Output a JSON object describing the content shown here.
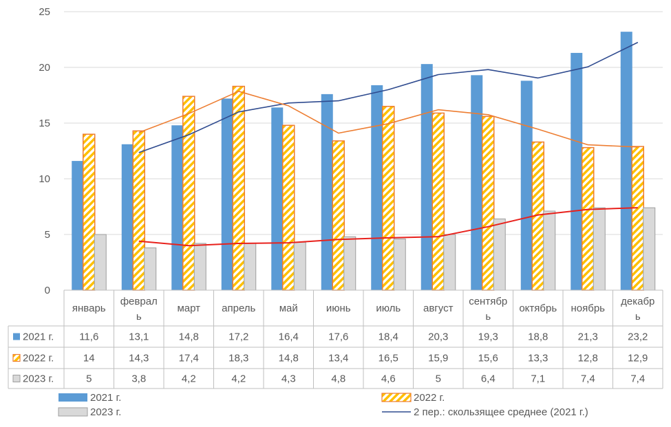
{
  "chart_data": {
    "type": "bar",
    "title": "",
    "xlabel": "",
    "ylabel": "",
    "ylim": [
      0,
      25
    ],
    "yticks": [
      0,
      5,
      10,
      15,
      20,
      25
    ],
    "grid": true,
    "categories": [
      "январь",
      "февраль",
      "март",
      "апрель",
      "май",
      "июнь",
      "июль",
      "август",
      "сентябрь",
      "октябрь",
      "ноябрь",
      "декабрь"
    ],
    "category_lines": [
      [
        "январь"
      ],
      [
        "феврал",
        "ь"
      ],
      [
        "март"
      ],
      [
        "апрель"
      ],
      [
        "май"
      ],
      [
        "июнь"
      ],
      [
        "июль"
      ],
      [
        "август"
      ],
      [
        "сентябр",
        "ь"
      ],
      [
        "октябрь"
      ],
      [
        "ноябрь"
      ],
      [
        "декабр",
        "ь"
      ]
    ],
    "series": [
      {
        "name": "2021 г.",
        "values": [
          11.6,
          13.1,
          14.8,
          17.2,
          16.4,
          17.6,
          18.4,
          20.3,
          19.3,
          18.8,
          21.3,
          23.2
        ],
        "labels": [
          "11,6",
          "13,1",
          "14,8",
          "17,2",
          "16,4",
          "17,6",
          "18,4",
          "20,3",
          "19,3",
          "18,8",
          "21,3",
          "23,2"
        ],
        "color": "#5B9BD5",
        "style": "solid"
      },
      {
        "name": "2022 г.",
        "values": [
          14,
          14.3,
          17.4,
          18.3,
          14.8,
          13.4,
          16.5,
          15.9,
          15.6,
          13.3,
          12.8,
          12.9
        ],
        "labels": [
          "14",
          "14,3",
          "17,4",
          "18,3",
          "14,8",
          "13,4",
          "16,5",
          "15,9",
          "15,6",
          "13,3",
          "12,8",
          "12,9"
        ],
        "color": "#ED7D31",
        "fill2": "#FFC000",
        "style": "hatched"
      },
      {
        "name": "2023 г.",
        "values": [
          5,
          3.8,
          4.2,
          4.2,
          4.3,
          4.8,
          4.6,
          5,
          6.4,
          7.1,
          7.4,
          7.4
        ],
        "labels": [
          "5",
          "3,8",
          "4,2",
          "4,2",
          "4,3",
          "4,8",
          "4,6",
          "5",
          "6,4",
          "7,1",
          "7,4",
          "7,4"
        ],
        "color": "#D9D9D9",
        "stroke": "#9E9E9E",
        "style": "solid"
      }
    ],
    "trendlines": [
      {
        "name": "2 пер.: скользящее среднее (2021 г.)",
        "series": 0,
        "color": "#2F4B8F",
        "in_legend": true
      },
      {
        "name": "",
        "series": 1,
        "color": "#ED7D31",
        "in_legend": false
      },
      {
        "name": "",
        "series": 2,
        "color": "#E8211C",
        "in_legend": false
      }
    ],
    "legend": {
      "placement": "bottom",
      "entries": [
        "2021 г.",
        "2022 г.",
        "2023 г.",
        "2 пер.: скользящее среднее (2021 г.)"
      ]
    }
  }
}
